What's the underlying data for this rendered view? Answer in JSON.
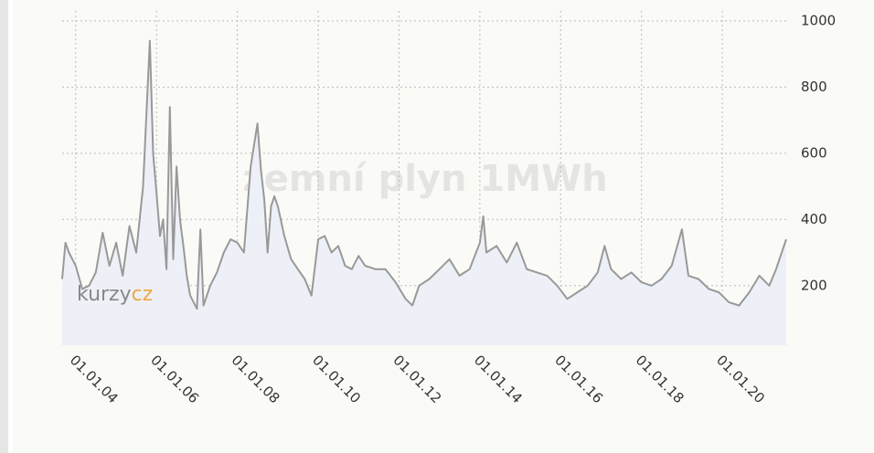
{
  "chart_data": {
    "type": "line",
    "title": "zemní plyn 1MWh",
    "logo": {
      "text": "kurzy",
      "accent": "cz"
    },
    "color": "#999999",
    "grid": true,
    "ylim": [
      20,
      1030
    ],
    "yticks": [
      200,
      400,
      600,
      800,
      1000
    ],
    "xlim": [
      "2003-09-01",
      "2021-08-01"
    ],
    "xticks": [
      {
        "value": "2004-01-01",
        "label": "01.01.04"
      },
      {
        "value": "2006-01-01",
        "label": "01.01.06"
      },
      {
        "value": "2008-01-01",
        "label": "01.01.08"
      },
      {
        "value": "2010-01-01",
        "label": "01.01.10"
      },
      {
        "value": "2012-01-01",
        "label": "01.01.12"
      },
      {
        "value": "2014-01-01",
        "label": "01.01.14"
      },
      {
        "value": "2016-01-01",
        "label": "01.01.16"
      },
      {
        "value": "2018-01-01",
        "label": "01.01.18"
      },
      {
        "value": "2020-01-01",
        "label": "01.01.20"
      }
    ],
    "x": [
      "2003-09-01",
      "2003-10-01",
      "2003-11-01",
      "2004-01-01",
      "2004-03-01",
      "2004-05-01",
      "2004-07-01",
      "2004-09-01",
      "2004-11-01",
      "2005-01-01",
      "2005-03-01",
      "2005-05-01",
      "2005-07-01",
      "2005-09-01",
      "2005-11-01",
      "2005-12-01",
      "2006-01-01",
      "2006-02-01",
      "2006-03-01",
      "2006-04-01",
      "2006-05-01",
      "2006-06-01",
      "2006-07-01",
      "2006-08-01",
      "2006-09-01",
      "2006-10-01",
      "2006-11-01",
      "2007-01-01",
      "2007-02-01",
      "2007-03-01",
      "2007-05-01",
      "2007-07-01",
      "2007-09-01",
      "2007-11-01",
      "2008-01-01",
      "2008-03-01",
      "2008-05-01",
      "2008-07-01",
      "2008-08-01",
      "2008-09-01",
      "2008-10-01",
      "2008-11-01",
      "2008-12-01",
      "2009-01-01",
      "2009-03-01",
      "2009-05-01",
      "2009-07-01",
      "2009-09-01",
      "2009-11-01",
      "2010-01-01",
      "2010-03-01",
      "2010-05-01",
      "2010-07-01",
      "2010-09-01",
      "2010-11-01",
      "2011-01-01",
      "2011-03-01",
      "2011-06-01",
      "2011-09-01",
      "2011-12-01",
      "2012-03-01",
      "2012-05-01",
      "2012-07-01",
      "2012-10-01",
      "2013-01-01",
      "2013-04-01",
      "2013-07-01",
      "2013-10-01",
      "2014-01-01",
      "2014-02-01",
      "2014-03-01",
      "2014-06-01",
      "2014-09-01",
      "2014-12-01",
      "2015-03-01",
      "2015-06-01",
      "2015-09-01",
      "2015-12-01",
      "2016-03-01",
      "2016-06-01",
      "2016-09-01",
      "2016-12-01",
      "2017-02-01",
      "2017-04-01",
      "2017-07-01",
      "2017-10-01",
      "2018-01-01",
      "2018-04-01",
      "2018-07-01",
      "2018-10-01",
      "2019-01-01",
      "2019-03-01",
      "2019-06-01",
      "2019-09-01",
      "2019-12-01",
      "2020-03-01",
      "2020-06-01",
      "2020-09-01",
      "2020-12-01",
      "2021-03-01",
      "2021-05-01",
      "2021-08-01"
    ],
    "values": [
      220,
      330,
      300,
      260,
      190,
      200,
      240,
      360,
      260,
      330,
      230,
      380,
      300,
      500,
      940,
      600,
      480,
      350,
      400,
      250,
      740,
      280,
      560,
      400,
      320,
      230,
      170,
      130,
      370,
      140,
      200,
      240,
      300,
      340,
      330,
      300,
      560,
      690,
      550,
      460,
      300,
      440,
      470,
      440,
      350,
      280,
      250,
      220,
      170,
      340,
      350,
      300,
      320,
      260,
      250,
      290,
      260,
      250,
      250,
      210,
      160,
      140,
      200,
      220,
      250,
      280,
      230,
      250,
      330,
      410,
      300,
      320,
      270,
      330,
      250,
      240,
      230,
      200,
      160,
      180,
      200,
      240,
      320,
      250,
      220,
      240,
      210,
      200,
      220,
      260,
      370,
      230,
      220,
      190,
      180,
      150,
      140,
      180,
      230,
      200,
      250,
      340
    ]
  }
}
